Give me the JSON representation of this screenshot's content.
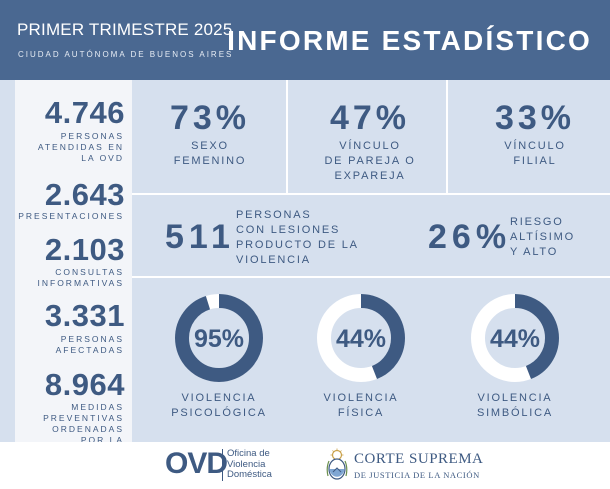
{
  "header": {
    "period": "PRIMER TRIMESTRE 2025",
    "location": "CIUDAD AUTÓNOMA DE BUENOS AIRES",
    "title": "INFORME ESTADÍSTICO"
  },
  "sidebar": [
    {
      "value": "4.746",
      "label": "PERSONAS\nATENDIDAS EN\nLA OVD"
    },
    {
      "value": "2.643",
      "label": "PRESENTACIONES"
    },
    {
      "value": "2.103",
      "label": "CONSULTAS\nINFORMATIVAS"
    },
    {
      "value": "3.331",
      "label": "PERSONAS\nAFECTADAS"
    },
    {
      "value": "8.964",
      "label": "MEDIDAS\nPREVENTIVAS\nORDENADAS\nPOR LA\nJUSTICIA"
    }
  ],
  "top_stats": [
    {
      "value": "73%",
      "label": "SEXO\nFEMENINO"
    },
    {
      "value": "47%",
      "label": "VÍNCULO\nDE PAREJA O\nEXPAREJA"
    },
    {
      "value": "33%",
      "label": "VÍNCULO\nFILIAL"
    }
  ],
  "middle": {
    "injuries_value": "511",
    "injuries_label": "PERSONAS\nCON LESIONES\nPRODUCTO DE LA\nVIOLENCIA",
    "risk_value": "26%",
    "risk_label": "RIESGO\nALTÍSIMO\nY ALTO"
  },
  "donuts": [
    {
      "value": "95%",
      "fraction": 0.95,
      "label": "VIOLENCIA\nPSICOLÓGICA"
    },
    {
      "value": "44%",
      "fraction": 0.44,
      "label": "VIOLENCIA\nFÍSICA"
    },
    {
      "value": "44%",
      "fraction": 0.44,
      "label": "VIOLENCIA\nSIMBÓLICA"
    }
  ],
  "footer": {
    "ovd_logo": "OVD",
    "ovd_text": "Oficina de\nViolencia\nDoméstica",
    "court_line1": "CORTE SUPREMA",
    "court_line2": "DE JUSTICIA DE LA NACIÓN"
  },
  "colors": {
    "header_bg": "#4a6891",
    "main_bg": "#d6e0ee",
    "sidebar_bg": "#f3f5f9",
    "text_primary": "#3e5a82",
    "donut_track": "#ffffff"
  }
}
